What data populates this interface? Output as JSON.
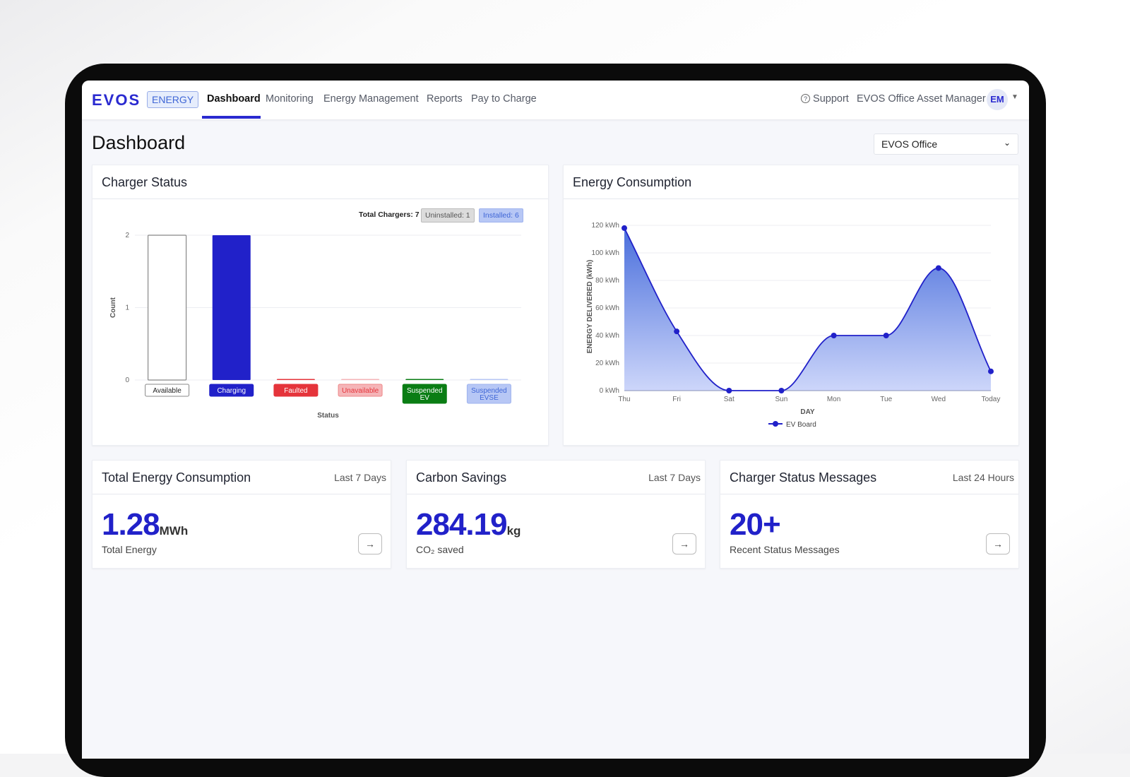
{
  "nav": {
    "logo": "EVOS",
    "badge": "ENERGY",
    "items": [
      {
        "label": "Dashboard",
        "active": true
      },
      {
        "label": "Monitoring"
      },
      {
        "label": "Energy Management"
      },
      {
        "label": "Reports"
      },
      {
        "label": "Pay to Charge"
      }
    ],
    "support": "Support",
    "user_name": "EVOS Office Asset Manager",
    "avatar_initials": "EM",
    "accent": "#2a2ad0"
  },
  "page": {
    "title": "Dashboard",
    "site_select": "EVOS Office"
  },
  "charger_status": {
    "title": "Charger Status",
    "total": "Total Chargers: 7",
    "uninstalled": "Uninstalled: 1",
    "installed": "Installed: 6"
  },
  "energy_consumption": {
    "title": "Energy Consumption"
  },
  "chart_data": [
    {
      "type": "bar",
      "categories": [
        "Available",
        "Charging",
        "Faulted",
        "Unavailable",
        "Suspended EV",
        "Suspended EVSE"
      ],
      "values": [
        2,
        2,
        0,
        0,
        0,
        0
      ],
      "colors": [
        "#ffffff",
        "#2121c9",
        "#e5343b",
        "#f5b5b8",
        "#0a7d14",
        "#b7c7f5"
      ],
      "xlabel": "Status",
      "ylabel": "Count",
      "ylim": [
        0,
        2
      ],
      "yticks": [
        "0",
        "1",
        "2"
      ],
      "grid": true
    },
    {
      "type": "area",
      "categories": [
        "Thu",
        "Fri",
        "Sat",
        "Sun",
        "Mon",
        "Tue",
        "Wed",
        "Today"
      ],
      "series": [
        {
          "name": "EV Board",
          "values": [
            118,
            43,
            0,
            0,
            40,
            40,
            89,
            14
          ],
          "color": "#2121c9"
        }
      ],
      "xlabel": "DAY",
      "ylabel": "ENERGY DELIVERED (kWh)",
      "ylim": [
        0,
        120
      ],
      "yticks": [
        "0 kWh",
        "20 kWh",
        "40 kWh",
        "60 kWh",
        "80 kWh",
        "100 kWh",
        "120 kWh"
      ],
      "grid": true,
      "legend": "bottom"
    }
  ],
  "summary_cards": [
    {
      "title": "Total Energy Consumption",
      "period": "Last 7 Days",
      "value": "1.28",
      "unit": "MWh",
      "caption": "Total Energy"
    },
    {
      "title": "Carbon Savings",
      "period": "Last 7 Days",
      "value": "284.19",
      "unit": "kg",
      "caption": "CO₂ saved"
    },
    {
      "title": "Charger Status Messages",
      "period": "Last 24 Hours",
      "value": "20+",
      "unit": "",
      "caption": "Recent Status Messages"
    }
  ]
}
